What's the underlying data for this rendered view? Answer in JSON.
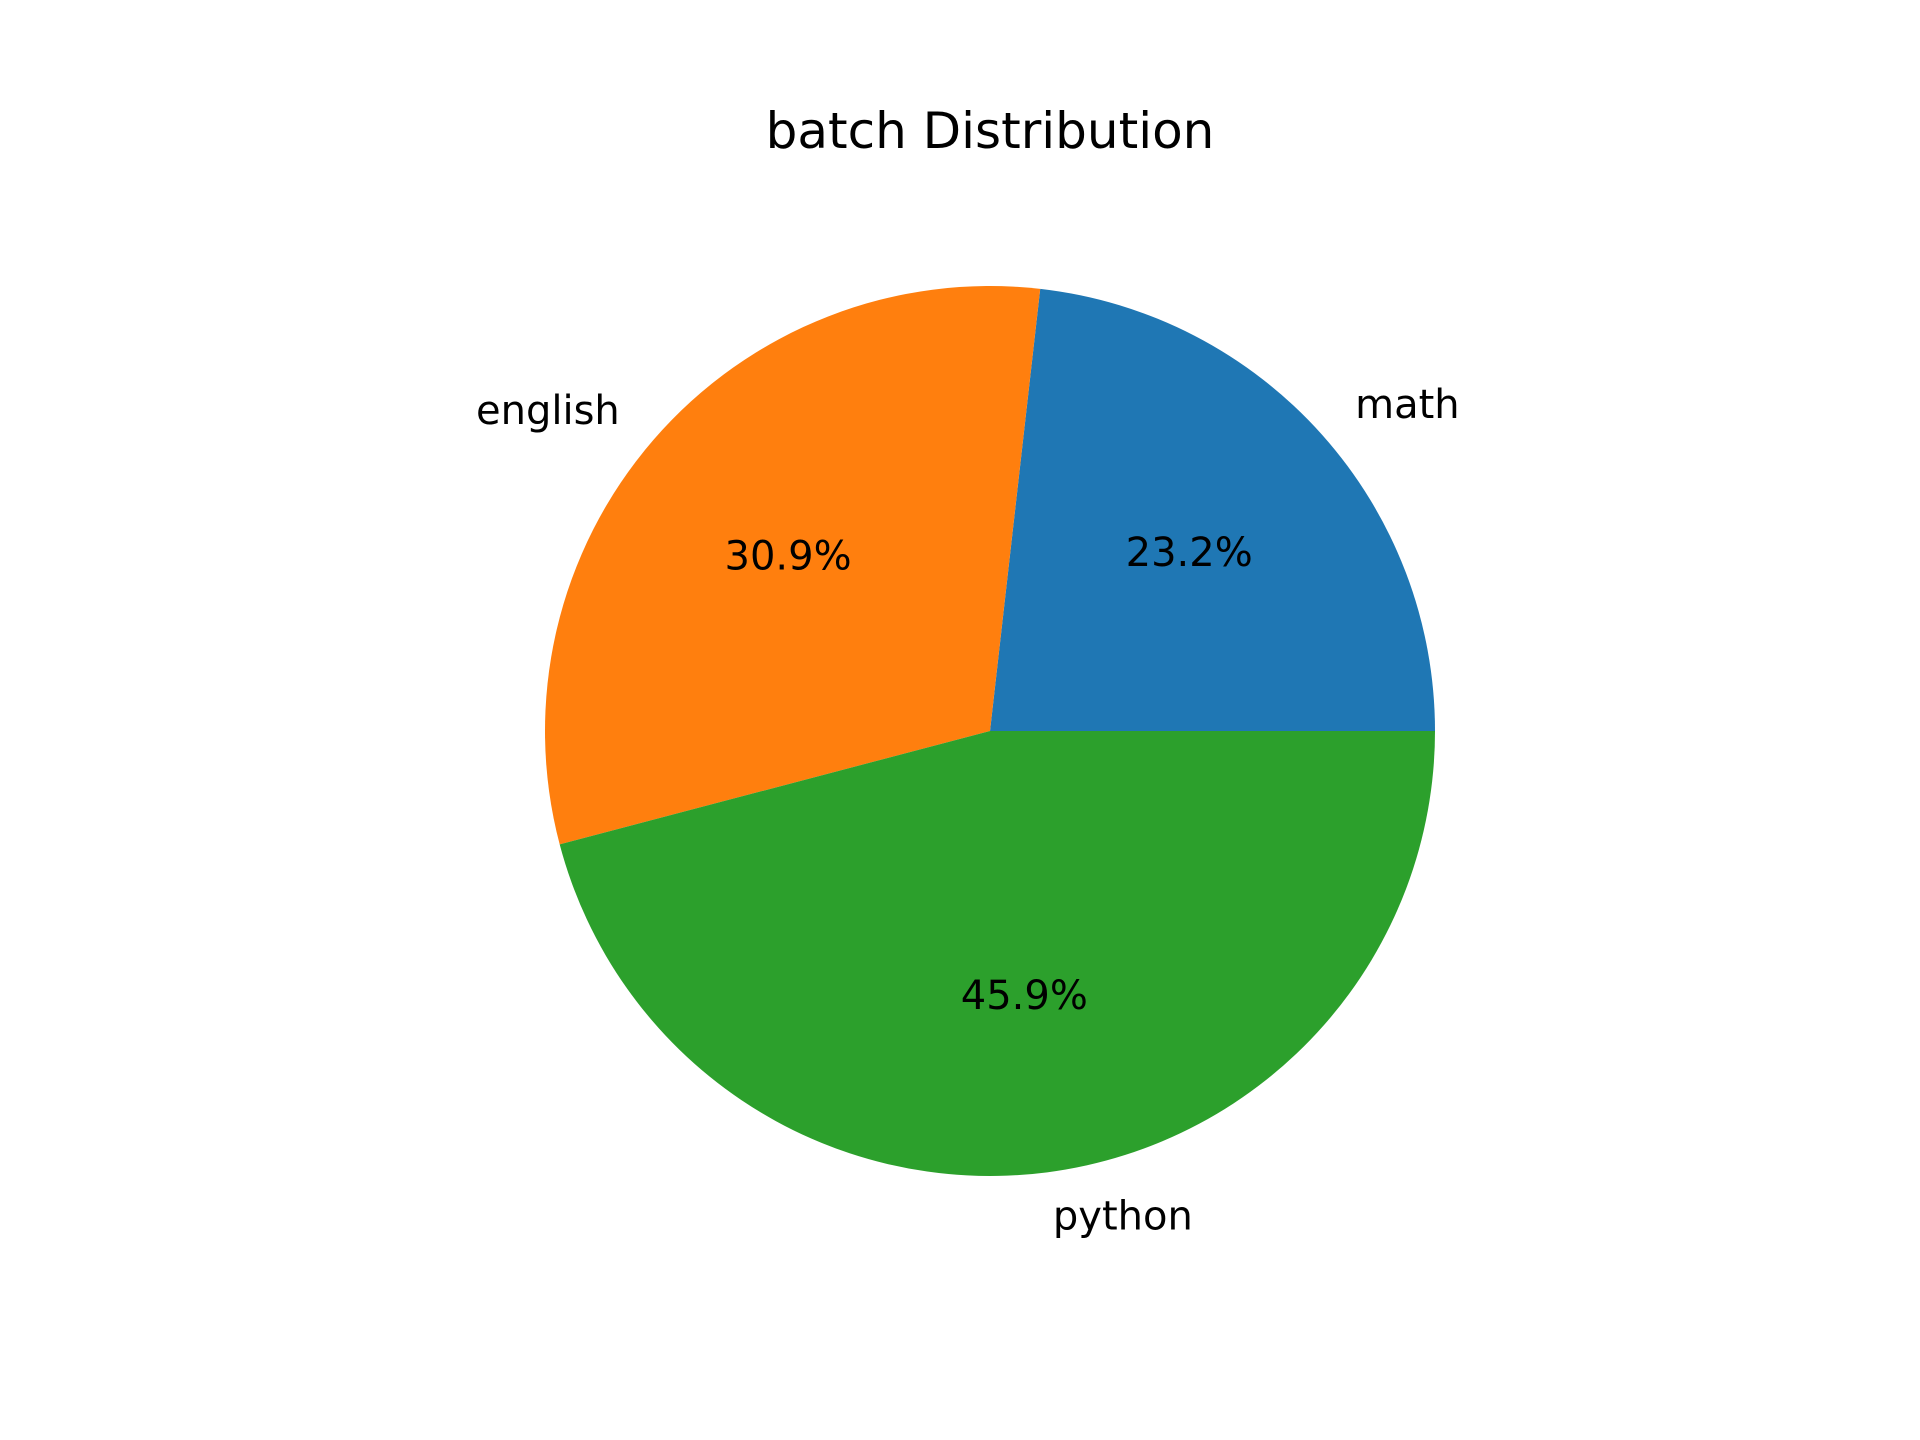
{
  "chart_data": {
    "type": "pie",
    "title": "batch Distribution",
    "start_angle_deg": 0,
    "direction": "counterclockwise",
    "slices": [
      {
        "label": "math",
        "value": 23.2,
        "pct_label": "23.2%",
        "color": "#1f77b4"
      },
      {
        "label": "english",
        "value": 30.9,
        "pct_label": "30.9%",
        "color": "#ff7f0e"
      },
      {
        "label": "python",
        "value": 45.9,
        "pct_label": "45.9%",
        "color": "#2ca02c"
      }
    ]
  }
}
